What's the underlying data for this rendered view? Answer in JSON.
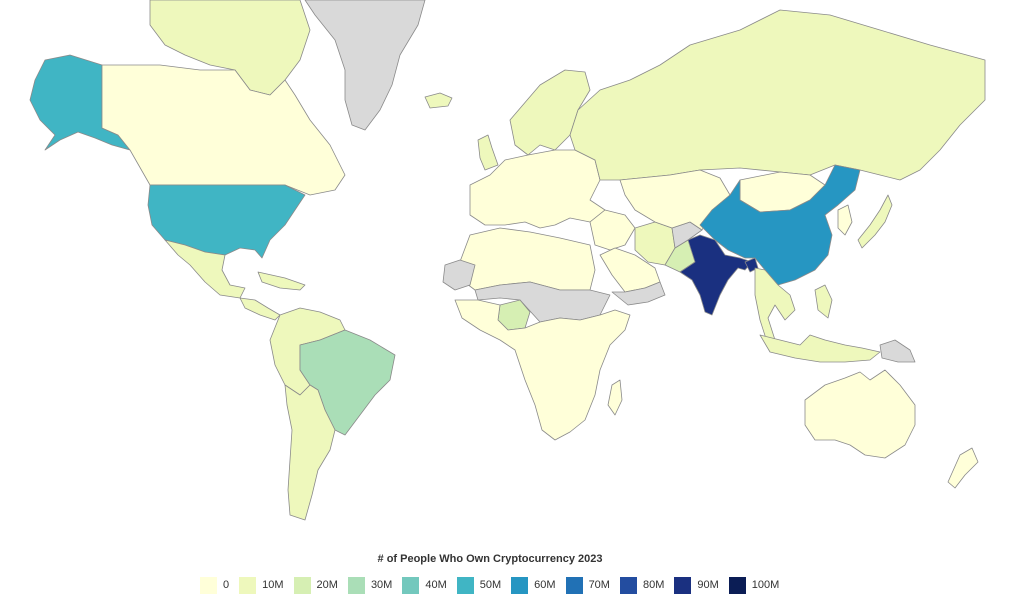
{
  "map": {
    "title": "# of People Who Own Cryptocurrency 2023",
    "no_data_color": "#d9d9d9",
    "border_color": "#8a8a8a",
    "legend": [
      {
        "label": "0",
        "color": "#ffffd9"
      },
      {
        "label": "10M",
        "color": "#eef8bc"
      },
      {
        "label": "20M",
        "color": "#d6efb3"
      },
      {
        "label": "30M",
        "color": "#aadeb7"
      },
      {
        "label": "40M",
        "color": "#73c8bd"
      },
      {
        "label": "50M",
        "color": "#40b5c4"
      },
      {
        "label": "60M",
        "color": "#2696c2"
      },
      {
        "label": "70M",
        "color": "#2171b5"
      },
      {
        "label": "80M",
        "color": "#234da0"
      },
      {
        "label": "90M",
        "color": "#1a3080"
      },
      {
        "label": "100M",
        "color": "#0b1d55"
      }
    ],
    "regions": [
      {
        "id": "greenland",
        "color": "#d9d9d9"
      },
      {
        "id": "alaska",
        "color": "#40b5c4"
      },
      {
        "id": "canada",
        "color": "#ffffd9"
      },
      {
        "id": "canada-arctic-islands",
        "color": "#eef8bc"
      },
      {
        "id": "united-states",
        "color": "#40b5c4"
      },
      {
        "id": "mexico",
        "color": "#eef8bc"
      },
      {
        "id": "central-america",
        "color": "#eef8bc"
      },
      {
        "id": "caribbean",
        "color": "#eef8bc"
      },
      {
        "id": "brazil",
        "color": "#aadeb7"
      },
      {
        "id": "south-america-north",
        "color": "#eef8bc"
      },
      {
        "id": "south-america-south",
        "color": "#eef8bc"
      },
      {
        "id": "iceland",
        "color": "#eef8bc"
      },
      {
        "id": "united-kingdom",
        "color": "#eef8bc"
      },
      {
        "id": "europe",
        "color": "#ffffd9"
      },
      {
        "id": "scandinavia",
        "color": "#eef8bc"
      },
      {
        "id": "russia",
        "color": "#eef8bc"
      },
      {
        "id": "north-africa",
        "color": "#ffffd9"
      },
      {
        "id": "western-sahara",
        "color": "#d9d9d9"
      },
      {
        "id": "sahel",
        "color": "#d9d9d9"
      },
      {
        "id": "nigeria",
        "color": "#d6efb3"
      },
      {
        "id": "central-southern-africa",
        "color": "#ffffd9"
      },
      {
        "id": "madagascar",
        "color": "#ffffd9"
      },
      {
        "id": "middle-east",
        "color": "#ffffd9"
      },
      {
        "id": "arabian-peninsula",
        "color": "#ffffd9"
      },
      {
        "id": "yemen-oman",
        "color": "#d9d9d9"
      },
      {
        "id": "iran",
        "color": "#eef8bc"
      },
      {
        "id": "pakistan",
        "color": "#d6efb3"
      },
      {
        "id": "afghanistan",
        "color": "#d9d9d9"
      },
      {
        "id": "central-asia",
        "color": "#ffffd9"
      },
      {
        "id": "mongolia",
        "color": "#ffffd9"
      },
      {
        "id": "china",
        "color": "#2696c2"
      },
      {
        "id": "india",
        "color": "#1a3080"
      },
      {
        "id": "bangladesh",
        "color": "#1a3080"
      },
      {
        "id": "southeast-asia",
        "color": "#eef8bc"
      },
      {
        "id": "korea",
        "color": "#ffffd9"
      },
      {
        "id": "japan",
        "color": "#eef8bc"
      },
      {
        "id": "philippines",
        "color": "#eef8bc"
      },
      {
        "id": "indonesia",
        "color": "#eef8bc"
      },
      {
        "id": "papua-new-guinea",
        "color": "#d9d9d9"
      },
      {
        "id": "australia",
        "color": "#ffffd9"
      },
      {
        "id": "new-zealand",
        "color": "#ffffd9"
      }
    ]
  }
}
